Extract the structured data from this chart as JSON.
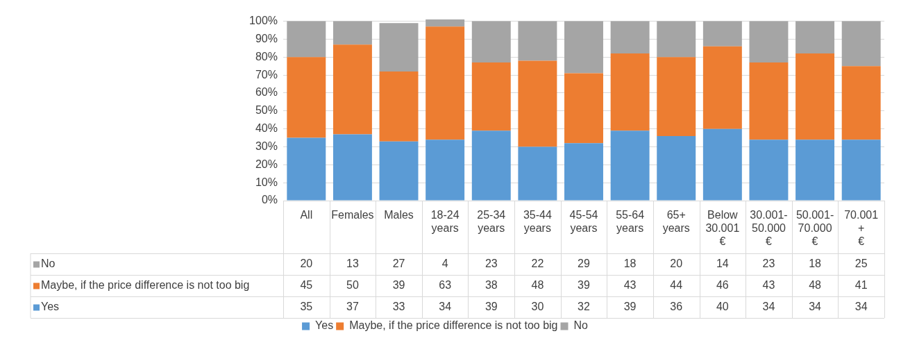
{
  "chart_data": {
    "type": "bar",
    "stacked": true,
    "categories": [
      "All",
      "Females",
      "Males",
      "18-24 years",
      "25-34 years",
      "35-44 years",
      "45-54 years",
      "55-64 years",
      "65+ years",
      "Below 30.001 €",
      "30.001-50.000 €",
      "50.001-70.000 €",
      "70.001 + €"
    ],
    "series": [
      {
        "name": "Yes",
        "color": "#5b9bd5",
        "values": [
          35,
          37,
          33,
          34,
          39,
          30,
          32,
          39,
          36,
          40,
          34,
          34,
          34
        ]
      },
      {
        "name": "Maybe, if the price difference is not too big",
        "color": "#ed7d31",
        "values": [
          45,
          50,
          39,
          63,
          38,
          48,
          39,
          43,
          44,
          46,
          43,
          48,
          41
        ]
      },
      {
        "name": "No",
        "color": "#a5a5a5",
        "values": [
          20,
          13,
          27,
          4,
          23,
          22,
          29,
          18,
          20,
          14,
          23,
          18,
          25
        ]
      }
    ],
    "ylim": [
      0,
      101
    ],
    "yticks": [
      {
        "value": 0,
        "label": "0%"
      },
      {
        "value": 10,
        "label": "10%"
      },
      {
        "value": 20,
        "label": "20%"
      },
      {
        "value": 30,
        "label": "30%"
      },
      {
        "value": 40,
        "label": "40%"
      },
      {
        "value": 50,
        "label": "50%"
      },
      {
        "value": 60,
        "label": "60%"
      },
      {
        "value": 70,
        "label": "70%"
      },
      {
        "value": 80,
        "label": "80%"
      },
      {
        "value": 90,
        "label": "90%"
      },
      {
        "value": 100,
        "label": "100%"
      }
    ],
    "grid": "y",
    "legend": "bottom",
    "data_labels": true
  }
}
